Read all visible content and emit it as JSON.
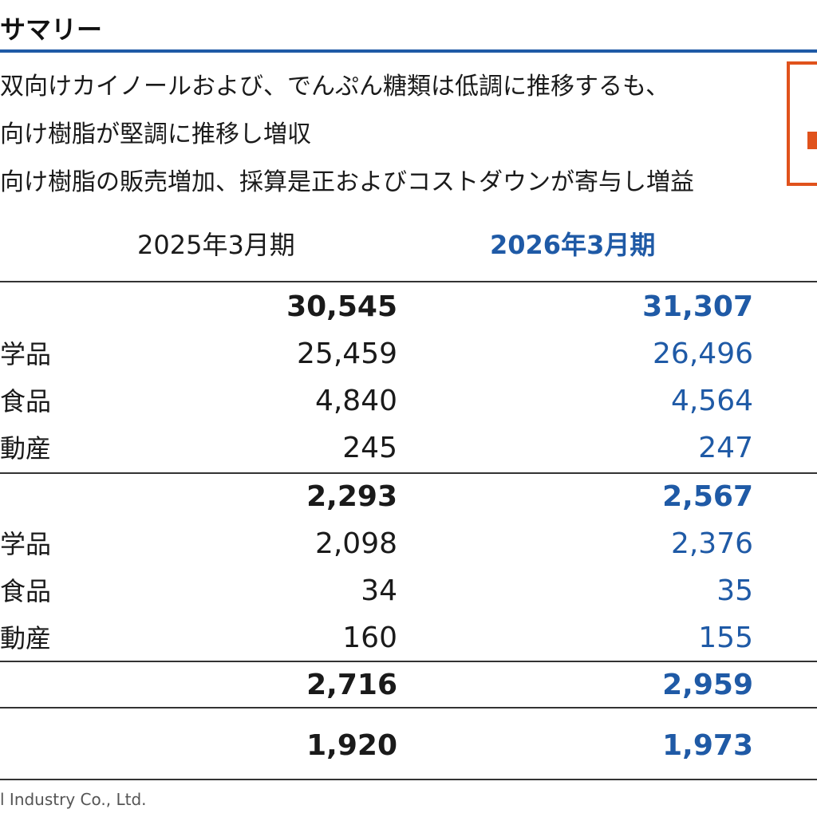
{
  "header": {
    "title": "サマリー"
  },
  "bullets": [
    "双向けカイノールおよび、でんぷん糖類は低調に推移するも、",
    "向け樹脂が堅調に推移し増収",
    "向け樹脂の販売増加、採算是正およびコストダウンが寄与し増益"
  ],
  "table": {
    "col_prev": "2025年3月期",
    "col_curr": "2026年3月期",
    "rows": [
      {
        "label": "",
        "prev": "30,545",
        "curr": "31,307"
      },
      {
        "label": "学品",
        "prev": "25,459",
        "curr": "26,496"
      },
      {
        "label": "食品",
        "prev": "4,840",
        "curr": "4,564"
      },
      {
        "label": "動産",
        "prev": "245",
        "curr": "247"
      },
      {
        "label": "",
        "prev": "2,293",
        "curr": "2,567"
      },
      {
        "label": "学品",
        "prev": "2,098",
        "curr": "2,376"
      },
      {
        "label": "食品",
        "prev": "34",
        "curr": "35"
      },
      {
        "label": "動産",
        "prev": "160",
        "curr": "155"
      },
      {
        "label": "",
        "prev": "2,716",
        "curr": "2,959"
      },
      {
        "label": "",
        "prev": "1,920",
        "curr": "1,973"
      }
    ]
  },
  "footer": {
    "text": "l Industry Co., Ltd."
  },
  "colors": {
    "accent_blue": "#1f5aa6",
    "callout_orange": "#e0521c"
  }
}
